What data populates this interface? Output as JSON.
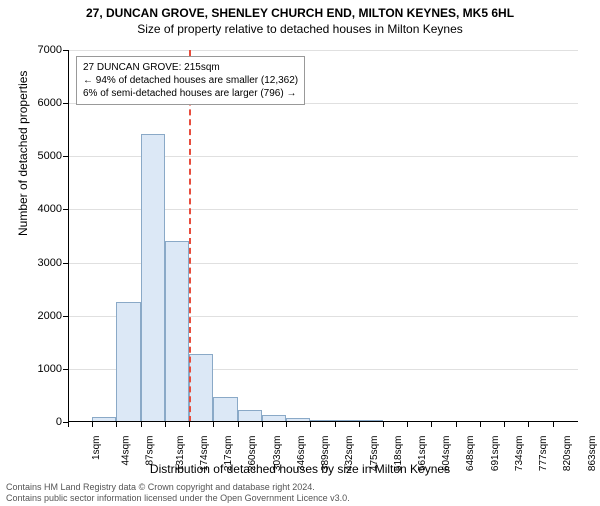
{
  "title_main": "27, DUNCAN GROVE, SHENLEY CHURCH END, MILTON KEYNES, MK5 6HL",
  "title_sub": "Size of property relative to detached houses in Milton Keynes",
  "ylabel": "Number of detached properties",
  "xlabel": "Distribution of detached houses by size in Milton Keynes",
  "footer_line1": "Contains HM Land Registry data © Crown copyright and database right 2024.",
  "footer_line2": "Contains public sector information licensed under the Open Government Licence v3.0.",
  "callout": {
    "line1": "27 DUNCAN GROVE: 215sqm",
    "line2": "← 94% of detached houses are smaller (12,362)",
    "line3": "6% of semi-detached houses are larger (796) →"
  },
  "chart": {
    "type": "histogram",
    "background_color": "#ffffff",
    "grid_color": "#e0e0e0",
    "bar_fill": "#dce8f6",
    "bar_border": "#8aa9c7",
    "marker_color": "#e74c3c",
    "marker_x_sqm": 215,
    "ylim": [
      0,
      7000
    ],
    "ytick_step": 1000,
    "yticks": [
      0,
      1000,
      2000,
      3000,
      4000,
      5000,
      6000,
      7000
    ],
    "label_fontsize": 12,
    "tick_fontsize": 11,
    "x_categories": [
      "1sqm",
      "44sqm",
      "87sqm",
      "131sqm",
      "174sqm",
      "217sqm",
      "260sqm",
      "303sqm",
      "346sqm",
      "389sqm",
      "432sqm",
      "475sqm",
      "518sqm",
      "561sqm",
      "604sqm",
      "648sqm",
      "691sqm",
      "734sqm",
      "777sqm",
      "820sqm",
      "863sqm"
    ],
    "values": [
      0,
      90,
      2250,
      5420,
      3400,
      1280,
      470,
      220,
      140,
      70,
      40,
      30,
      10,
      5,
      5,
      5,
      5,
      5,
      5,
      5,
      5
    ],
    "bin_width_sqm": 43,
    "x_min_sqm": 1,
    "x_max_sqm": 906
  }
}
